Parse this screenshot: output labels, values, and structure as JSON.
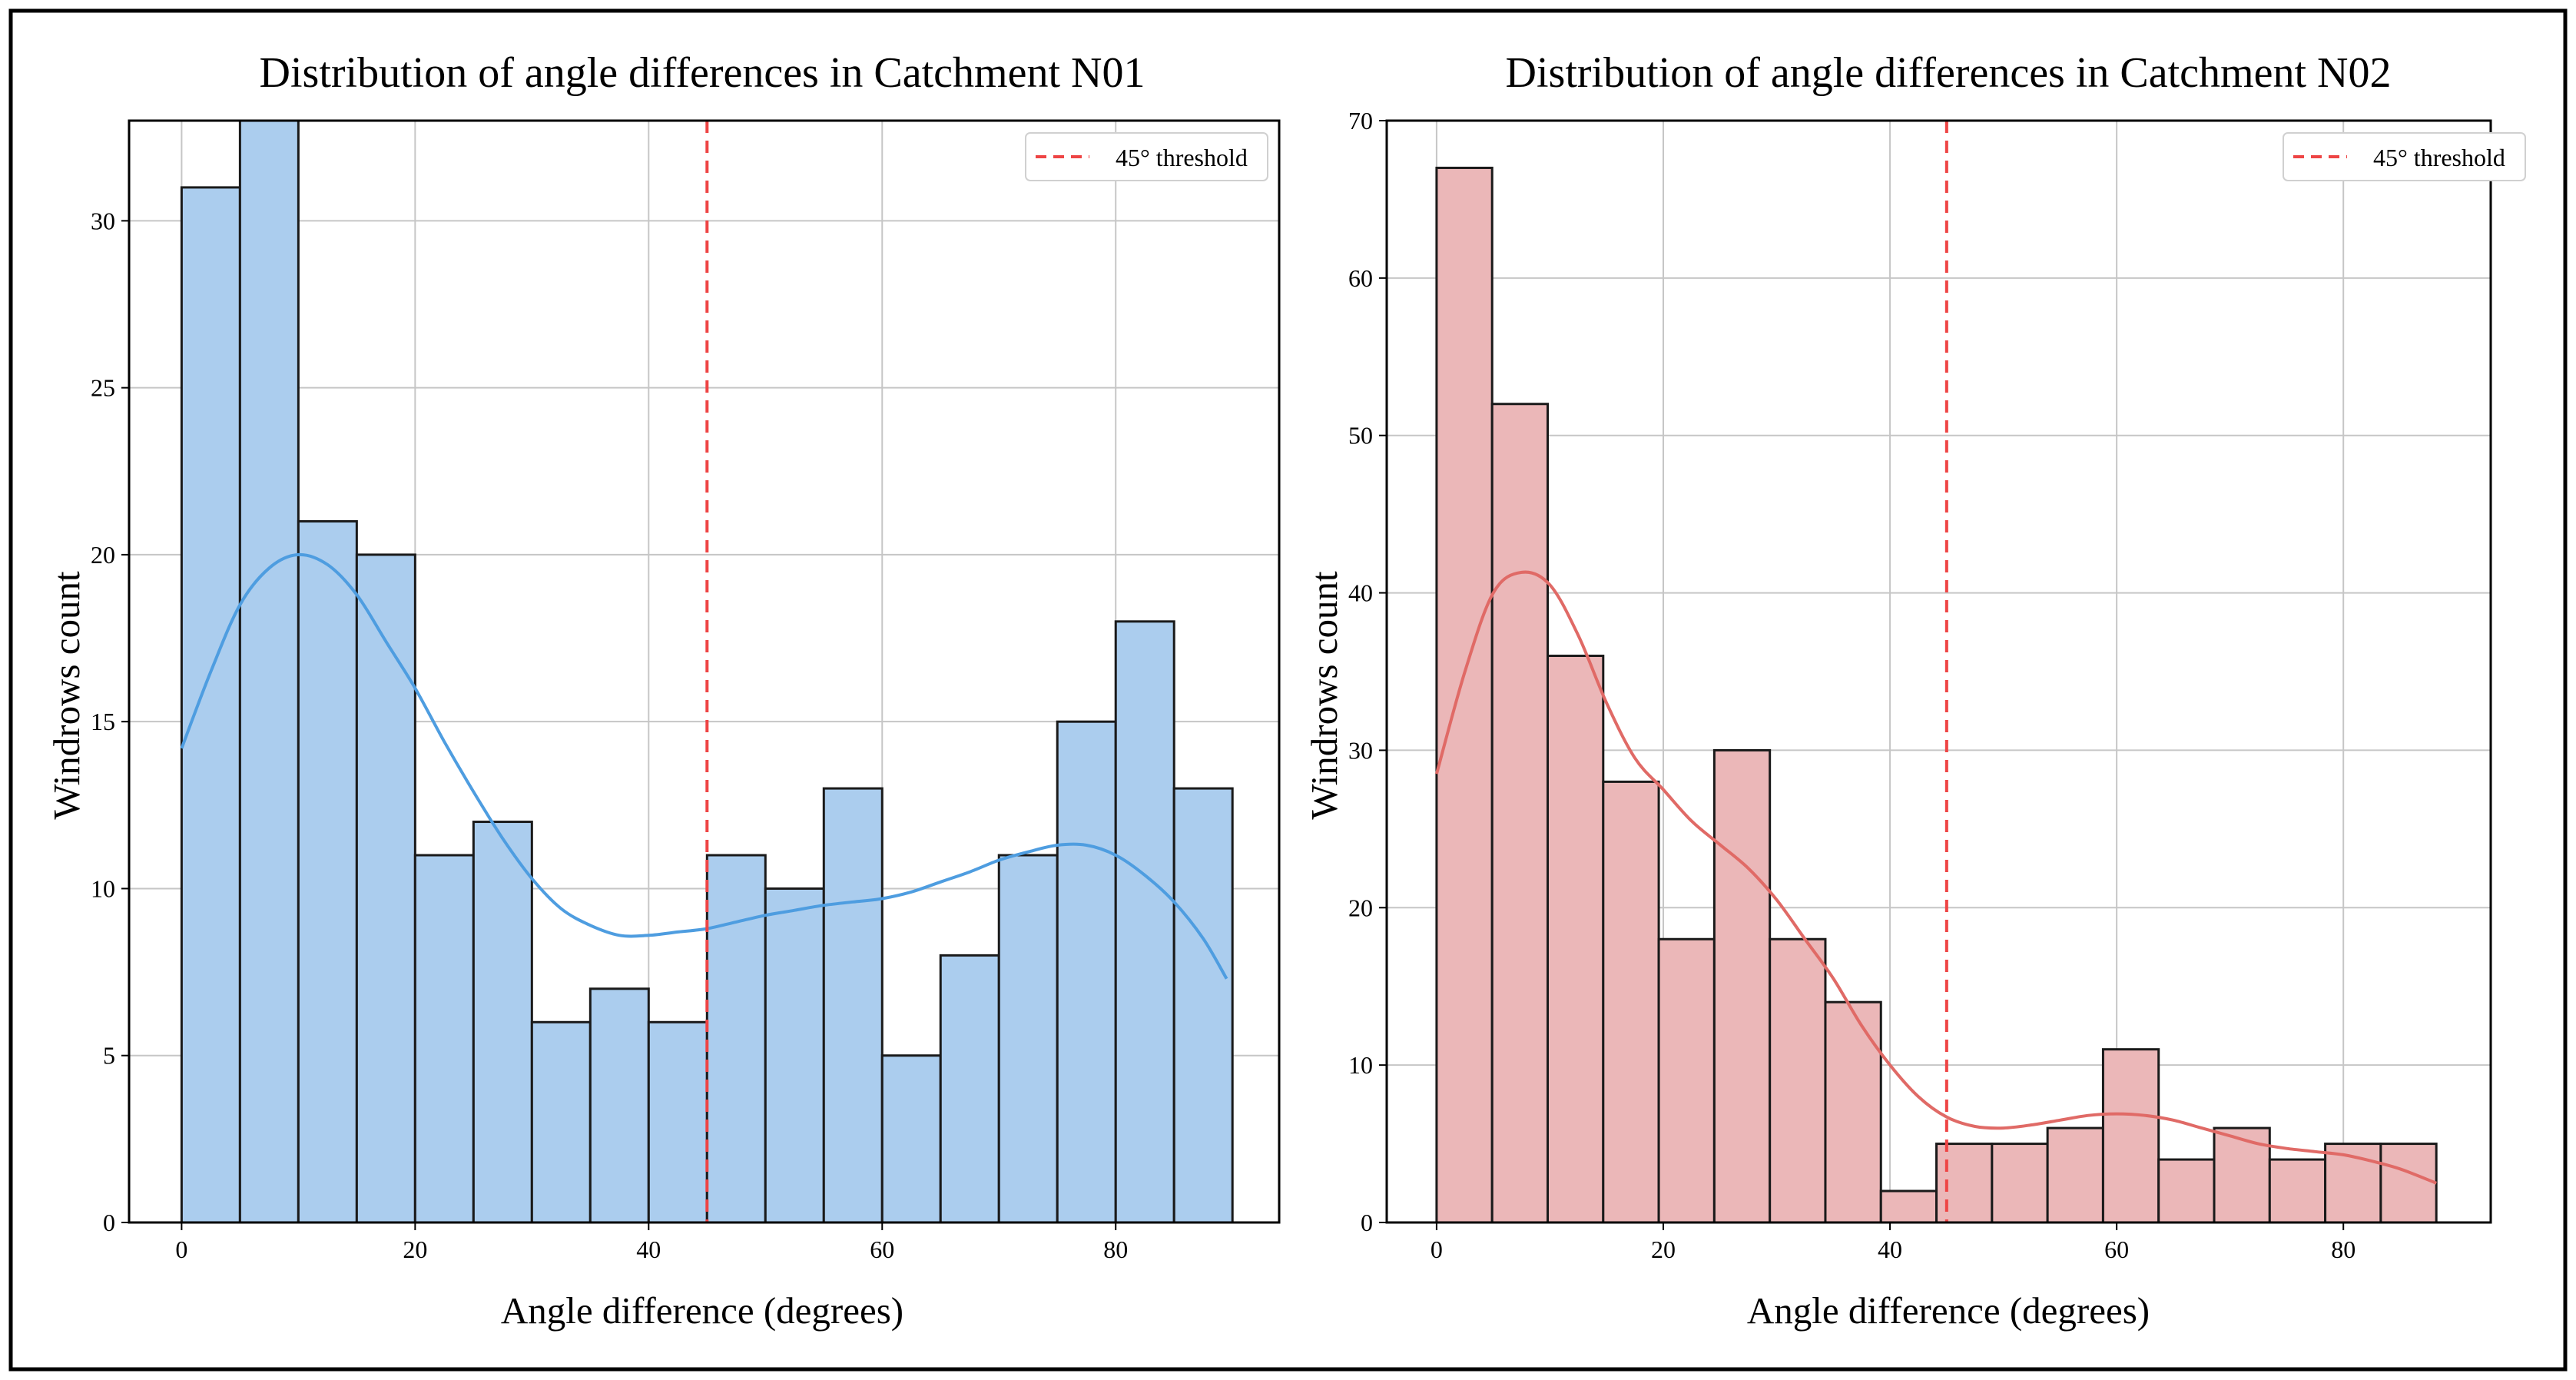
{
  "colors": {
    "n01_bar_fill": "#abcdee",
    "n01_kde_line": "#4e9de0",
    "n02_bar_fill": "#ebb7b8",
    "n02_kde_line": "#e06a66",
    "bar_edge": "#1a1a1a",
    "threshold_line": "#ee4444",
    "grid": "#c6c6c6",
    "frame": "#000000"
  },
  "chart_data": [
    {
      "type": "bar",
      "title": "Distribution of angle differences in Catchment N01",
      "xlabel": "Angle difference (degrees)",
      "ylabel": "Windrows count",
      "xlim": [
        -4.5,
        94
      ],
      "ylim": [
        0,
        33
      ],
      "xticks": [
        0,
        20,
        40,
        60,
        80
      ],
      "yticks": [
        0,
        5,
        10,
        15,
        20,
        25,
        30
      ],
      "grid": true,
      "bin_edges": [
        0,
        5,
        10,
        15,
        20,
        25,
        30,
        35,
        40,
        45,
        50,
        55,
        60,
        65,
        70,
        75,
        80,
        85,
        90
      ],
      "values": [
        31,
        33,
        21,
        20,
        11,
        12,
        6,
        7,
        6,
        11,
        10,
        13,
        5,
        8,
        11,
        15,
        18,
        13
      ],
      "kde": {
        "x": [
          0,
          2.5,
          5,
          7.5,
          10,
          12.5,
          15,
          17.5,
          20,
          22.5,
          25,
          27.5,
          30,
          32.5,
          35,
          37.5,
          40,
          42.5,
          45,
          47.5,
          50,
          52.5,
          55,
          57.5,
          60,
          62.5,
          65,
          67.5,
          70,
          72.5,
          75,
          77.5,
          80,
          82.5,
          85,
          87.5,
          89.5
        ],
        "y": [
          14.2,
          16.5,
          18.5,
          19.6,
          20.0,
          19.7,
          18.8,
          17.4,
          16.0,
          14.4,
          12.9,
          11.5,
          10.3,
          9.4,
          8.9,
          8.6,
          8.6,
          8.7,
          8.8,
          9.0,
          9.2,
          9.35,
          9.5,
          9.6,
          9.7,
          9.9,
          10.2,
          10.5,
          10.85,
          11.1,
          11.3,
          11.3,
          11.0,
          10.4,
          9.6,
          8.5,
          7.3
        ]
      },
      "threshold": 45,
      "legend_label": "45° threshold",
      "legend_position": "upper right"
    },
    {
      "type": "bar",
      "title": "Distribution of angle differences in Catchment N02",
      "xlabel": "Angle difference (degrees)",
      "ylabel": "Windrows count",
      "xlim": [
        -4.4,
        93
      ],
      "ylim": [
        0,
        70
      ],
      "xticks": [
        0,
        20,
        40,
        60,
        80
      ],
      "yticks": [
        0,
        10,
        20,
        30,
        40,
        50,
        60,
        70
      ],
      "grid": true,
      "bin_edges": [
        0,
        4.9,
        9.8,
        14.7,
        19.6,
        24.5,
        29.4,
        34.3,
        39.2,
        44.1,
        49.0,
        53.9,
        58.8,
        63.7,
        68.6,
        73.5,
        78.4,
        83.3,
        88.2
      ],
      "values": [
        67,
        52,
        36,
        28,
        18,
        30,
        18,
        14,
        2,
        5,
        5,
        6,
        11,
        4,
        6,
        4,
        5,
        5
      ],
      "kde": {
        "x": [
          0,
          2.5,
          5,
          7.5,
          10,
          12.5,
          15,
          17.5,
          20,
          22.5,
          25,
          27.5,
          30,
          32.5,
          35,
          37.5,
          40,
          42.5,
          45,
          47.5,
          50,
          52.5,
          55,
          57.5,
          60,
          62.5,
          65,
          67.5,
          70,
          72.5,
          75,
          77.5,
          80,
          82.5,
          85,
          88.2
        ],
        "y": [
          28.5,
          35,
          40,
          41.3,
          40.5,
          37.3,
          33.0,
          29.5,
          27.5,
          25.5,
          24.0,
          22.5,
          20.5,
          18.0,
          15.5,
          12.5,
          10.0,
          8.0,
          6.7,
          6.1,
          6.0,
          6.2,
          6.5,
          6.8,
          6.9,
          6.8,
          6.5,
          6.0,
          5.5,
          5.0,
          4.7,
          4.5,
          4.3,
          3.9,
          3.4,
          2.5
        ]
      },
      "threshold": 45,
      "legend_label": "45° threshold",
      "legend_position": "upper right"
    }
  ]
}
